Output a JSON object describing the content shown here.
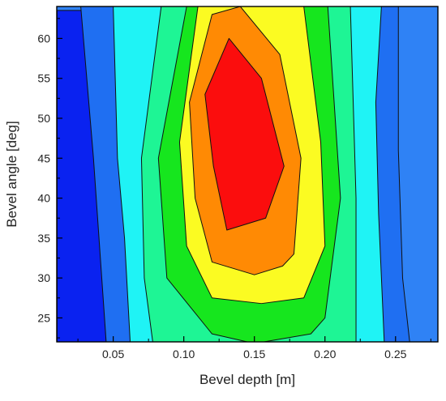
{
  "chart_data": {
    "type": "contour",
    "title": "",
    "xlabel": "Bevel depth [m]",
    "ylabel": "Bevel angle [deg]",
    "xlim": [
      0.01,
      0.28
    ],
    "ylim": [
      22,
      64
    ],
    "x_ticks": [
      0.05,
      0.1,
      0.15,
      0.2,
      0.25
    ],
    "x_tick_labels": [
      "0.05",
      "0.10",
      "0.15",
      "0.20",
      "0.25"
    ],
    "y_ticks": [
      25,
      30,
      35,
      40,
      45,
      50,
      55,
      60
    ],
    "y_tick_labels": [
      "25",
      "30",
      "35",
      "40",
      "45",
      "50",
      "55",
      "60"
    ],
    "legend": "none",
    "grid": false,
    "levels": [
      {
        "color": "#0a22f0",
        "outline": [
          [
            0.0102,
            22
          ],
          [
            0.045,
            22
          ],
          [
            0.038,
            45
          ],
          [
            0.028,
            63.5
          ],
          [
            0.0102,
            63.5
          ]
        ]
      },
      {
        "color": "#1f6ff2",
        "outline": [
          [
            0.045,
            22
          ],
          [
            0.26,
            22
          ],
          [
            0.255,
            30
          ],
          [
            0.252,
            46
          ],
          [
            0.252,
            64
          ],
          [
            0.027,
            64
          ],
          [
            0.036,
            45
          ]
        ]
      },
      {
        "color": "#1ff3f5",
        "outline": [
          [
            0.062,
            22
          ],
          [
            0.242,
            22
          ],
          [
            0.238,
            38
          ],
          [
            0.236,
            52
          ],
          [
            0.24,
            64
          ],
          [
            0.05,
            64
          ],
          [
            0.053,
            45
          ],
          [
            0.058,
            35
          ]
        ]
      },
      {
        "color": "#1ef595",
        "outline": [
          [
            0.078,
            22
          ],
          [
            0.222,
            22
          ],
          [
            0.222,
            40
          ],
          [
            0.218,
            64
          ],
          [
            0.084,
            64
          ],
          [
            0.07,
            45
          ],
          [
            0.072,
            30
          ]
        ]
      },
      {
        "color": "#16e61e",
        "outline": [
          [
            0.15,
            21.5
          ],
          [
            0.19,
            23
          ],
          [
            0.2,
            25
          ],
          [
            0.211,
            40
          ],
          [
            0.202,
            64
          ],
          [
            0.102,
            64
          ],
          [
            0.082,
            45
          ],
          [
            0.088,
            30
          ],
          [
            0.12,
            23
          ]
        ]
      },
      {
        "color": "#fbfb22",
        "outline": [
          [
            0.155,
            26.8
          ],
          [
            0.185,
            27.5
          ],
          [
            0.2,
            34
          ],
          [
            0.197,
            47
          ],
          [
            0.185,
            64
          ],
          [
            0.11,
            64
          ],
          [
            0.097,
            47
          ],
          [
            0.102,
            34
          ],
          [
            0.12,
            27.5
          ]
        ]
      },
      {
        "color": "#ff8a04",
        "outline": [
          [
            0.15,
            30.4
          ],
          [
            0.17,
            31.5
          ],
          [
            0.178,
            33
          ],
          [
            0.183,
            45
          ],
          [
            0.168,
            58
          ],
          [
            0.14,
            64
          ],
          [
            0.12,
            63
          ],
          [
            0.104,
            52
          ],
          [
            0.108,
            40
          ],
          [
            0.12,
            32
          ]
        ]
      },
      {
        "color": "#fb0d0d",
        "outline": [
          [
            0.1305,
            36
          ],
          [
            0.158,
            37.5
          ],
          [
            0.171,
            44
          ],
          [
            0.155,
            55
          ],
          [
            0.132,
            60
          ],
          [
            0.115,
            53
          ],
          [
            0.121,
            44
          ]
        ]
      }
    ]
  }
}
